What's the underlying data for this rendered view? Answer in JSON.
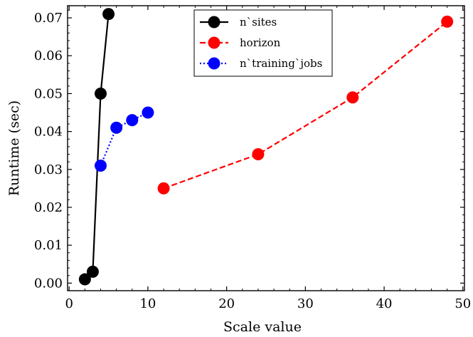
{
  "chart_data": {
    "type": "line",
    "xlabel": "Scale value",
    "ylabel": "Runtime (sec)",
    "xlim": [
      -0.2,
      50.2
    ],
    "ylim": [
      -0.002,
      0.0732
    ],
    "xticks": [
      0,
      10,
      20,
      30,
      40,
      50
    ],
    "xtick_labels": [
      "0",
      "10",
      "20",
      "30",
      "40",
      "50"
    ],
    "yticks": [
      0.0,
      0.01,
      0.02,
      0.03,
      0.04,
      0.05,
      0.06,
      0.07
    ],
    "ytick_labels": [
      "0.00",
      "0.01",
      "0.02",
      "0.03",
      "0.04",
      "0.05",
      "0.06",
      "0.07"
    ],
    "grid": false,
    "legend_position": "top-center",
    "series": [
      {
        "name": "n`sites",
        "color": "#000000",
        "linestyle": "solid",
        "x": [
          2,
          3,
          4,
          5
        ],
        "y": [
          0.001,
          0.003,
          0.05,
          0.071
        ]
      },
      {
        "name": "horizon",
        "color": "#ff0000",
        "linestyle": "dashed",
        "x": [
          12,
          24,
          36,
          48
        ],
        "y": [
          0.025,
          0.034,
          0.049,
          0.069
        ]
      },
      {
        "name": "n`training`jobs",
        "color": "#0000ff",
        "linestyle": "dotted",
        "x": [
          4,
          6,
          8,
          10
        ],
        "y": [
          0.031,
          0.041,
          0.043,
          0.045
        ]
      }
    ]
  }
}
